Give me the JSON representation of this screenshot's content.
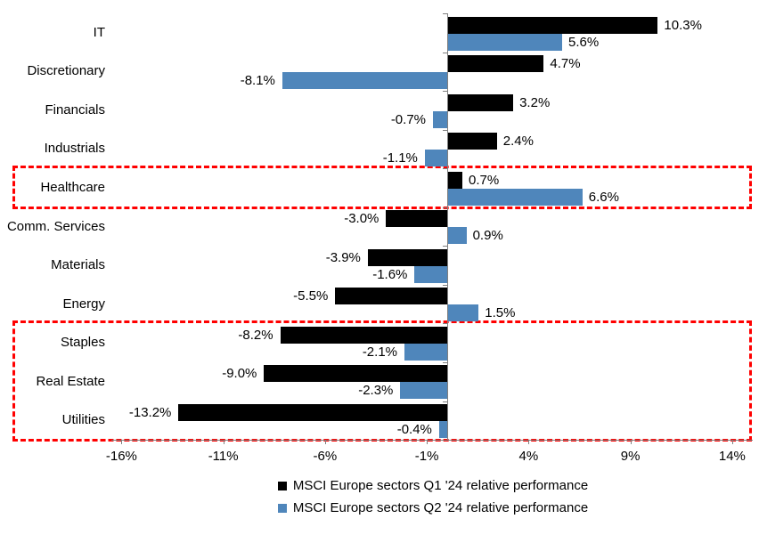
{
  "chart_data": {
    "type": "bar",
    "orientation": "horizontal",
    "title": "",
    "xlabel": "",
    "ylabel": "",
    "grid": false,
    "legend_position": "bottom",
    "categories": [
      "IT",
      "Discretionary",
      "Financials",
      "Industrials",
      "Healthcare",
      "Comm. Services",
      "Materials",
      "Energy",
      "Staples",
      "Real Estate",
      "Utilities"
    ],
    "series": [
      {
        "name": "MSCI Europe sectors Q1 '24 relative performance",
        "color": "#000000",
        "values": [
          10.3,
          4.7,
          3.2,
          2.4,
          0.7,
          -3.0,
          -3.9,
          -5.5,
          -8.2,
          -9.0,
          -13.2
        ]
      },
      {
        "name": "MSCI Europe sectors Q2 '24 relative performance",
        "color": "#4F86BB",
        "values": [
          5.6,
          -8.1,
          -0.7,
          -1.1,
          6.6,
          0.9,
          -1.6,
          1.5,
          -2.1,
          -2.3,
          -0.4
        ]
      }
    ],
    "value_label_suffix": "%",
    "x_ticks": [
      {
        "label": "-16%",
        "value": -16
      },
      {
        "label": "-11%",
        "value": -11
      },
      {
        "label": "-6%",
        "value": -6
      },
      {
        "label": "-1%",
        "value": -1
      },
      {
        "label": "4%",
        "value": 4
      },
      {
        "label": "9%",
        "value": 9
      },
      {
        "label": "14%",
        "value": 14
      }
    ],
    "xlim": [
      -16.5,
      15.0
    ],
    "axis_color": "#808080",
    "highlight_boxes": [
      {
        "from_category": "Healthcare",
        "to_category": "Healthcare",
        "color": "#FF0000",
        "style": "dashed"
      },
      {
        "from_category": "Staples",
        "to_category": "Utilities",
        "color": "#FF0000",
        "style": "dashed"
      }
    ]
  }
}
